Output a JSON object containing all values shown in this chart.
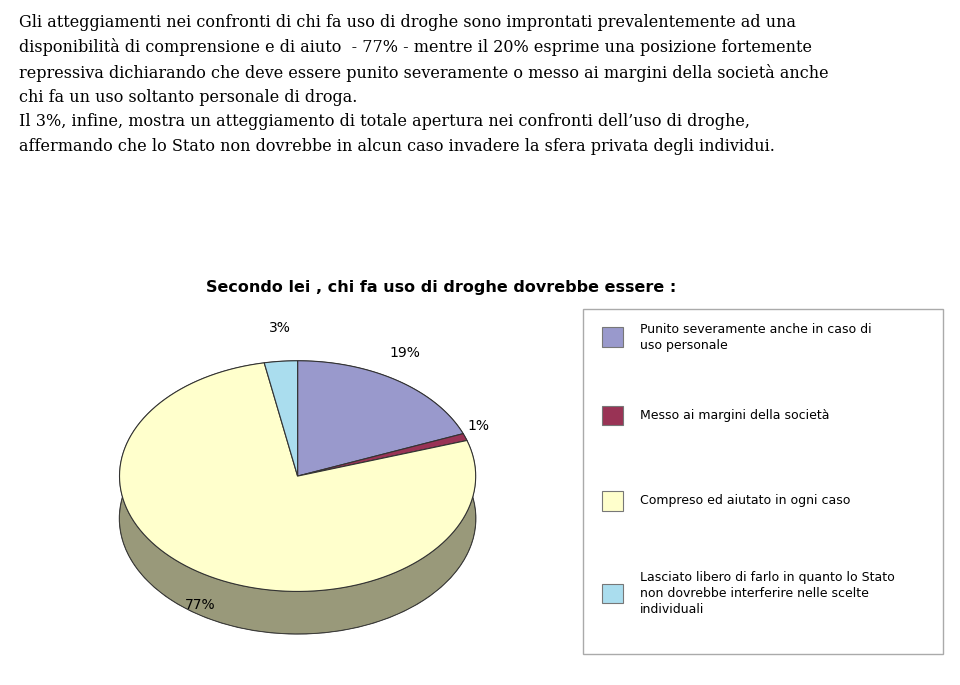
{
  "title": "Secondo lei , chi fa uso di droghe dovrebbe essere :",
  "slices": [
    19,
    1,
    77,
    3
  ],
  "labels": [
    "19%",
    "1%",
    "77%",
    "3%"
  ],
  "colors": [
    "#9999cc",
    "#993355",
    "#ffffcc",
    "#aaddee"
  ],
  "legend_labels": [
    "Punito severamente anche in caso di\nuso personale",
    "Messo ai margini della società",
    "Compreso ed aiutato in ogni caso",
    "Lasciato libero di farlo in quanto lo Stato\nnon dovrebbe interferire nelle scelte\nindividuali"
  ],
  "legend_colors": [
    "#9999cc",
    "#993355",
    "#ffffcc",
    "#aaddee"
  ],
  "text_lines": [
    "Gli atteggiamenti nei confronti di chi fa uso di droghe sono improntati prevalentemente ad una",
    "disponibilità di comprensione e di aiuto  - 77% - mentre il 20% esprime una posizione fortemente",
    "repressiva dichiarando che deve essere punito severamente o messo ai margini della società anche",
    "chi fa un uso soltanto personale di droga.",
    "Il 3%, infine, mostra un atteggiamento di totale apertura nei confronti dell’uso di droghe,",
    "affermando che lo Stato non dovrebbe in alcun caso invadere la sfera privata degli individui."
  ]
}
